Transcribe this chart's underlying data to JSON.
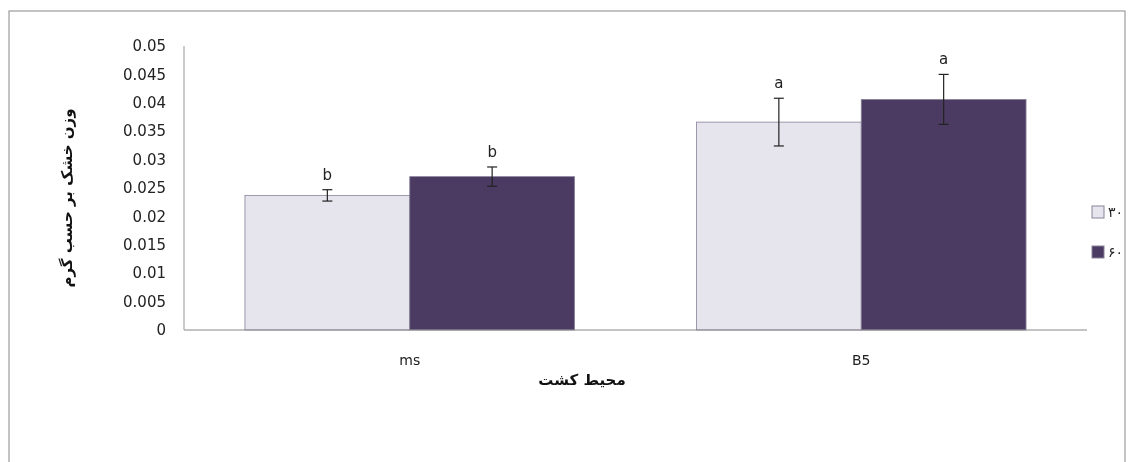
{
  "chart_data": {
    "type": "bar",
    "xlabel": "محیط کشت",
    "ylabel": "وزن خشک بر حسب گرم",
    "categories": [
      "ms",
      "B5"
    ],
    "series": [
      {
        "name": "۳۰",
        "color": "#e6e4ec",
        "values": [
          0.0237,
          0.0366
        ],
        "errors": [
          0.001,
          0.0042
        ]
      },
      {
        "name": "۶۰",
        "color": "#4b3b63",
        "values": [
          0.027,
          0.0406
        ],
        "errors": [
          0.0017,
          0.0044
        ]
      }
    ],
    "ylim": [
      0,
      0.05
    ],
    "yticks": [
      0,
      0.005,
      0.01,
      0.015,
      0.02,
      0.025,
      0.03,
      0.035,
      0.04,
      0.045,
      0.05
    ],
    "annotations": [
      "b",
      "b",
      "a",
      "a"
    ],
    "grid": false,
    "legend": "right"
  }
}
